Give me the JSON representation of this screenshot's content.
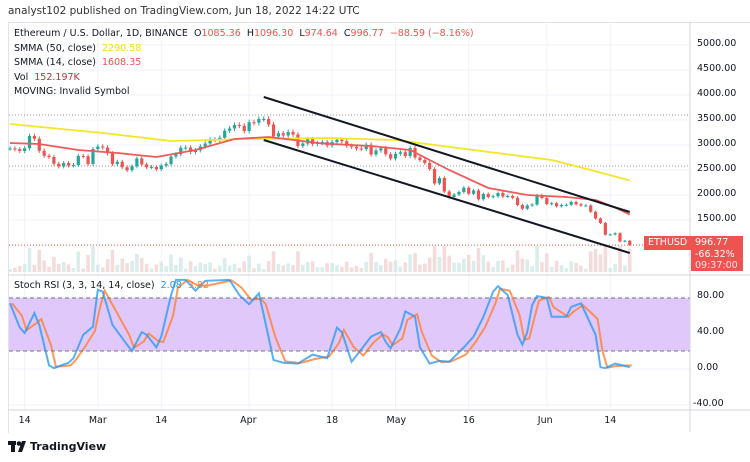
{
  "attribution": "analyst102 published on TradingView.com, Jun 18, 2022 14:22 UTC",
  "legend": {
    "symbol": "Ethereum / U.S. Dollar, 1D, BINANCE",
    "open_label": "O",
    "open": "1085.36",
    "high_label": "H",
    "high": "1096.30",
    "low_label": "L",
    "low": "974.64",
    "close_label": "C",
    "close": "996.77",
    "change": "−88.59 (−8.16%)",
    "smma50_label": "SMMA (50, close)",
    "smma50_value": "2290.58",
    "smma14_label": "SMMA (14, close)",
    "smma14_value": "1608.35",
    "vol_label": "Vol",
    "vol_value": "152.197K",
    "moving_label": "MOVING: Invalid Symbol"
  },
  "stoch_legend": {
    "label": "Stoch RSI (3, 3, 14, 14, close)",
    "k": "2.08",
    "d": "3.82"
  },
  "price_axis": [
    "5000.00",
    "4500.00",
    "4000.00",
    "3500.00",
    "3000.00",
    "2500.00",
    "2000.00",
    "1500.00"
  ],
  "stoch_axis": [
    "80.00",
    "40.00",
    "0.00",
    "-40.00"
  ],
  "time_axis": [
    {
      "label": "14",
      "date": "2022-02-14"
    },
    {
      "label": "Mar",
      "date": "2022-03-01"
    },
    {
      "label": "14",
      "date": "2022-03-14"
    },
    {
      "label": "Apr",
      "date": "2022-04-01"
    },
    {
      "label": "18",
      "date": "2022-04-18"
    },
    {
      "label": "May",
      "date": "2022-05-01"
    },
    {
      "label": "16",
      "date": "2022-05-16"
    },
    {
      "label": "Jun",
      "date": "2022-06-01"
    },
    {
      "label": "14",
      "date": "2022-06-14"
    }
  ],
  "price_label": {
    "symbol": "ETHUSD",
    "price": "996.77",
    "change_pct": "-66.32%",
    "countdown": "09:37:00"
  },
  "logo_text": "TradingView",
  "colors": {
    "up": "#26a69a",
    "down": "#ef5350",
    "smma50": "#f5e52a",
    "smma14": "#f05a5a",
    "stoch_k": "#2196f3",
    "stoch_d": "#ff7f32",
    "band": "#e1c8fa"
  },
  "chart_data": {
    "type": "candlestick",
    "start_date": "2022-02-11",
    "closes": [
      2930,
      2915,
      2880,
      2935,
      3180,
      3125,
      2885,
      2785,
      2760,
      2625,
      2570,
      2640,
      2590,
      2600,
      2780,
      2775,
      2620,
      2920,
      2970,
      2950,
      2835,
      2620,
      2665,
      2555,
      2495,
      2575,
      2730,
      2610,
      2555,
      2560,
      2515,
      2590,
      2620,
      2770,
      2815,
      2945,
      2950,
      2860,
      2895,
      2970,
      3030,
      3110,
      3105,
      3145,
      3285,
      3330,
      3400,
      3385,
      3280,
      3455,
      3445,
      3520,
      3520,
      3410,
      3170,
      3235,
      3190,
      3260,
      3210,
      2980,
      3030,
      3115,
      3020,
      3040,
      3060,
      2990,
      3060,
      3105,
      3075,
      2985,
      2965,
      2930,
      2920,
      3005,
      2810,
      2890,
      2935,
      2815,
      2730,
      2825,
      2855,
      2780,
      2940,
      2750,
      2700,
      2640,
      2520,
      2230,
      2340,
      2070,
      1960,
      2010,
      2060,
      2145,
      2025,
      2090,
      1915,
      2020,
      1960,
      1975,
      2040,
      1970,
      1980,
      1945,
      1800,
      1725,
      1790,
      1810,
      1995,
      1940,
      1820,
      1835,
      1775,
      1800,
      1805,
      1860,
      1815,
      1790,
      1790,
      1665,
      1530,
      1440,
      1205,
      1210,
      1235,
      1070,
      1085,
      996.77
    ],
    "last_open": 1085.36,
    "smma50": [
      [
        "2022-02-11",
        3420
      ],
      [
        "2022-03-02",
        3240
      ],
      [
        "2022-03-16",
        3080
      ],
      [
        "2022-04-01",
        3120
      ],
      [
        "2022-04-17",
        3140
      ],
      [
        "2022-05-01",
        3100
      ],
      [
        "2022-05-17",
        2900
      ],
      [
        "2022-06-02",
        2700
      ],
      [
        "2022-06-10",
        2500
      ],
      [
        "2022-06-18",
        2290.58
      ]
    ],
    "smma14": [
      [
        "2022-02-11",
        3040
      ],
      [
        "2022-02-17",
        3020
      ],
      [
        "2022-02-25",
        2900
      ],
      [
        "2022-03-05",
        2840
      ],
      [
        "2022-03-13",
        2760
      ],
      [
        "2022-03-21",
        2900
      ],
      [
        "2022-03-29",
        3120
      ],
      [
        "2022-04-05",
        3160
      ],
      [
        "2022-04-16",
        3030
      ],
      [
        "2022-04-26",
        2980
      ],
      [
        "2022-05-04",
        2900
      ],
      [
        "2022-05-12",
        2500
      ],
      [
        "2022-05-20",
        2140
      ],
      [
        "2022-05-28",
        2000
      ],
      [
        "2022-06-05",
        1960
      ],
      [
        "2022-06-11",
        1900
      ],
      [
        "2022-06-15",
        1750
      ],
      [
        "2022-06-18",
        1608.35
      ]
    ],
    "trendlines": [
      {
        "from": [
          "2022-04-04",
          3960
        ],
        "to": [
          "2022-06-18",
          1660
        ]
      },
      {
        "from": [
          "2022-04-04",
          3100
        ],
        "to": [
          "2022-06-18",
          840
        ]
      }
    ],
    "horizontal_lines": [
      3600,
      2580
    ],
    "stoch_rsi": {
      "dates": [
        "02-11",
        "02-13",
        "02-14",
        "02-16",
        "02-17",
        "02-19",
        "02-20",
        "02-23",
        "02-24",
        "02-26",
        "02-28",
        "03-01",
        "03-02",
        "03-04",
        "03-07",
        "03-08",
        "03-10",
        "03-11",
        "03-13",
        "03-14",
        "03-16",
        "03-17",
        "03-19",
        "03-21",
        "03-23",
        "03-28",
        "03-30",
        "04-01",
        "04-03",
        "04-04",
        "04-06",
        "04-08",
        "04-11",
        "04-14",
        "04-17",
        "04-19",
        "04-20",
        "04-22",
        "04-24",
        "04-26",
        "04-28",
        "04-29",
        "04-30",
        "05-02",
        "05-03",
        "05-05",
        "05-06",
        "05-08",
        "05-10",
        "05-12",
        "05-15",
        "05-17",
        "05-19",
        "05-21",
        "05-22",
        "05-24",
        "05-26",
        "05-27",
        "05-28",
        "05-29",
        "05-30",
        "06-01",
        "06-02",
        "06-05",
        "06-06",
        "06-08",
        "06-11",
        "06-12",
        "06-13",
        "06-15",
        "06-18"
      ],
      "k": [
        73,
        46,
        40,
        62,
        49,
        4,
        1,
        7,
        12,
        38,
        47,
        88,
        86,
        49,
        27,
        20,
        41,
        38,
        24,
        36,
        82,
        99,
        99,
        87,
        98,
        99,
        82,
        72,
        84,
        60,
        10,
        7,
        6,
        16,
        12,
        46,
        41,
        8,
        22,
        36,
        41,
        30,
        23,
        45,
        64,
        58,
        24,
        6,
        9,
        8,
        24,
        36,
        58,
        86,
        92,
        82,
        38,
        27,
        41,
        71,
        81,
        79,
        58,
        58,
        69,
        73,
        38,
        2,
        1,
        6,
        2.08
      ],
      "upper": 80,
      "lower": 20,
      "ylim": [
        -50,
        105
      ]
    },
    "ylim": [
      700,
      5300
    ]
  }
}
